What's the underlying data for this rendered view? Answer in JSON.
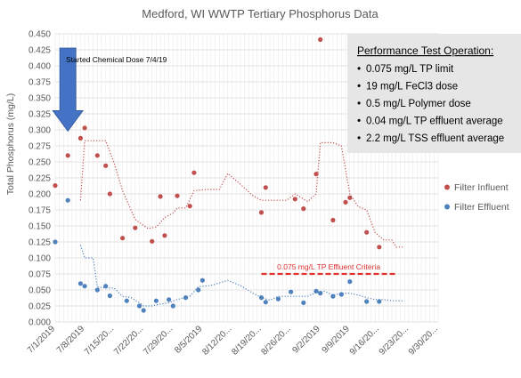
{
  "chart_data": {
    "type": "scatter",
    "title": "Medford, WI WWTP Tertiary Phosphorus Data",
    "ylabel": "Total Phosphorus (mg/L)",
    "xlabel": "",
    "ylim": [
      0,
      0.45
    ],
    "y_ticks": [
      "0.000",
      "0.025",
      "0.050",
      "0.075",
      "0.100",
      "0.125",
      "0.150",
      "0.175",
      "0.200",
      "0.225",
      "0.250",
      "0.275",
      "0.300",
      "0.325",
      "0.350",
      "0.375",
      "0.400",
      "0.425",
      "0.450"
    ],
    "x_range": [
      "2019-07-01",
      "2019-09-30"
    ],
    "x_tick_dates": [
      "2019-07-01",
      "2019-07-08",
      "2019-07-15",
      "2019-07-22",
      "2019-07-29",
      "2019-08-05",
      "2019-08-12",
      "2019-08-19",
      "2019-08-26",
      "2019-09-02",
      "2019-09-09",
      "2019-09-16",
      "2019-09-23",
      "2019-09-30"
    ],
    "x_tick_labels": [
      "7/1/2019",
      "7/8/2019",
      "7/15/20...",
      "7/22/20...",
      "7/29/20...",
      "8/5/2019",
      "8/12/20...",
      "8/19/20...",
      "8/26/20...",
      "9/2/2019",
      "9/9/2019",
      "9/16/20...",
      "9/23/20...",
      "9/30/20..."
    ],
    "grid": true,
    "legend_position": "right",
    "series": [
      {
        "name": "Filter Influent",
        "color": "#c0504d",
        "points": [
          [
            "2019-07-01",
            0.213
          ],
          [
            "2019-07-04",
            0.26
          ],
          [
            "2019-07-07",
            0.287
          ],
          [
            "2019-07-08",
            0.303
          ],
          [
            "2019-07-11",
            0.26
          ],
          [
            "2019-07-13",
            0.244
          ],
          [
            "2019-07-14",
            0.2
          ],
          [
            "2019-07-17",
            0.131
          ],
          [
            "2019-07-20",
            0.147
          ],
          [
            "2019-07-24",
            0.126
          ],
          [
            "2019-07-26",
            0.196
          ],
          [
            "2019-07-27",
            0.135
          ],
          [
            "2019-07-30",
            0.197
          ],
          [
            "2019-08-02",
            0.181
          ],
          [
            "2019-08-03",
            0.233
          ],
          [
            "2019-08-19",
            0.171
          ],
          [
            "2019-08-20",
            0.21
          ],
          [
            "2019-08-27",
            0.192
          ],
          [
            "2019-08-29",
            0.177
          ],
          [
            "2019-09-01",
            0.231
          ],
          [
            "2019-09-02",
            0.441
          ],
          [
            "2019-09-05",
            0.159
          ],
          [
            "2019-09-08",
            0.187
          ],
          [
            "2019-09-09",
            0.194
          ],
          [
            "2019-09-13",
            0.14
          ],
          [
            "2019-09-16",
            0.117
          ]
        ],
        "trend": [
          [
            "2019-07-07",
            0.19
          ],
          [
            "2019-07-08",
            0.283
          ],
          [
            "2019-07-11",
            0.283
          ],
          [
            "2019-07-13",
            0.283
          ],
          [
            "2019-07-15",
            0.248
          ],
          [
            "2019-07-17",
            0.205
          ],
          [
            "2019-07-20",
            0.16
          ],
          [
            "2019-07-23",
            0.146
          ],
          [
            "2019-07-25",
            0.148
          ],
          [
            "2019-07-27",
            0.163
          ],
          [
            "2019-07-29",
            0.17
          ],
          [
            "2019-07-30",
            0.178
          ],
          [
            "2019-08-01",
            0.178
          ],
          [
            "2019-08-03",
            0.205
          ],
          [
            "2019-08-06",
            0.207
          ],
          [
            "2019-08-09",
            0.207
          ],
          [
            "2019-08-11",
            0.232
          ],
          [
            "2019-08-14",
            0.215
          ],
          [
            "2019-08-17",
            0.197
          ],
          [
            "2019-08-19",
            0.19
          ],
          [
            "2019-08-22",
            0.19
          ],
          [
            "2019-08-25",
            0.19
          ],
          [
            "2019-08-27",
            0.2
          ],
          [
            "2019-08-30",
            0.188
          ],
          [
            "2019-09-01",
            0.2
          ],
          [
            "2019-09-02",
            0.28
          ],
          [
            "2019-09-05",
            0.28
          ],
          [
            "2019-09-07",
            0.275
          ],
          [
            "2019-09-09",
            0.2
          ],
          [
            "2019-09-11",
            0.18
          ],
          [
            "2019-09-13",
            0.175
          ],
          [
            "2019-09-15",
            0.14
          ],
          [
            "2019-09-17",
            0.128
          ],
          [
            "2019-09-19",
            0.128
          ],
          [
            "2019-09-20",
            0.117
          ],
          [
            "2019-09-22",
            0.117
          ]
        ]
      },
      {
        "name": "Filter Effluent",
        "color": "#4f81bd",
        "points": [
          [
            "2019-07-01",
            0.125
          ],
          [
            "2019-07-04",
            0.19
          ],
          [
            "2019-07-07",
            0.06
          ],
          [
            "2019-07-08",
            0.056
          ],
          [
            "2019-07-11",
            0.05
          ],
          [
            "2019-07-13",
            0.056
          ],
          [
            "2019-07-14",
            0.041
          ],
          [
            "2019-07-18",
            0.033
          ],
          [
            "2019-07-21",
            0.025
          ],
          [
            "2019-07-22",
            0.018
          ],
          [
            "2019-07-25",
            0.033
          ],
          [
            "2019-07-28",
            0.035
          ],
          [
            "2019-07-29",
            0.025
          ],
          [
            "2019-08-01",
            0.038
          ],
          [
            "2019-08-04",
            0.05
          ],
          [
            "2019-08-05",
            0.065
          ],
          [
            "2019-08-19",
            0.038
          ],
          [
            "2019-08-20",
            0.031
          ],
          [
            "2019-08-23",
            0.036
          ],
          [
            "2019-08-26",
            0.047
          ],
          [
            "2019-08-29",
            0.03
          ],
          [
            "2019-09-01",
            0.048
          ],
          [
            "2019-09-02",
            0.045
          ],
          [
            "2019-09-05",
            0.04
          ],
          [
            "2019-09-07",
            0.043
          ],
          [
            "2019-09-09",
            0.063
          ],
          [
            "2019-09-13",
            0.032
          ],
          [
            "2019-09-16",
            0.032
          ]
        ],
        "trend": [
          [
            "2019-07-07",
            0.12
          ],
          [
            "2019-07-08",
            0.1
          ],
          [
            "2019-07-10",
            0.1
          ],
          [
            "2019-07-11",
            0.055
          ],
          [
            "2019-07-13",
            0.053
          ],
          [
            "2019-07-15",
            0.053
          ],
          [
            "2019-07-17",
            0.04
          ],
          [
            "2019-07-19",
            0.038
          ],
          [
            "2019-07-21",
            0.03
          ],
          [
            "2019-07-22",
            0.025
          ],
          [
            "2019-07-24",
            0.025
          ],
          [
            "2019-07-26",
            0.028
          ],
          [
            "2019-07-28",
            0.03
          ],
          [
            "2019-07-30",
            0.035
          ],
          [
            "2019-08-02",
            0.04
          ],
          [
            "2019-08-04",
            0.055
          ],
          [
            "2019-08-07",
            0.057
          ],
          [
            "2019-08-11",
            0.065
          ],
          [
            "2019-08-14",
            0.057
          ],
          [
            "2019-08-17",
            0.045
          ],
          [
            "2019-08-19",
            0.038
          ],
          [
            "2019-08-21",
            0.034
          ],
          [
            "2019-08-23",
            0.04
          ],
          [
            "2019-08-26",
            0.04
          ],
          [
            "2019-08-28",
            0.04
          ],
          [
            "2019-08-30",
            0.04
          ],
          [
            "2019-09-01",
            0.046
          ],
          [
            "2019-09-03",
            0.048
          ],
          [
            "2019-09-05",
            0.042
          ],
          [
            "2019-09-07",
            0.045
          ],
          [
            "2019-09-09",
            0.045
          ],
          [
            "2019-09-11",
            0.042
          ],
          [
            "2019-09-13",
            0.038
          ],
          [
            "2019-09-15",
            0.035
          ],
          [
            "2019-09-17",
            0.035
          ],
          [
            "2019-09-19",
            0.033
          ],
          [
            "2019-09-22",
            0.033
          ]
        ]
      }
    ],
    "annotations": {
      "dose_label": "Started Chemical Dose 7/4/19",
      "dose_date": "2019-07-04",
      "criteria_label": "0.075 mg/L TP Effluent Criteria",
      "criteria_value": 0.075,
      "criteria_range": [
        "2019-08-19",
        "2019-09-20"
      ],
      "criteria_color": "#e03030",
      "arrow_color": "#4472c4"
    },
    "info_box": {
      "heading": "Performance Test Operation:",
      "items": [
        "0.075 mg/L TP limit",
        "19 mg/L FeCl3 dose",
        "0.5 mg/L Polymer dose",
        "0.04 mg/L TP effluent average",
        "2.2 mg/L TSS effluent average"
      ]
    }
  }
}
